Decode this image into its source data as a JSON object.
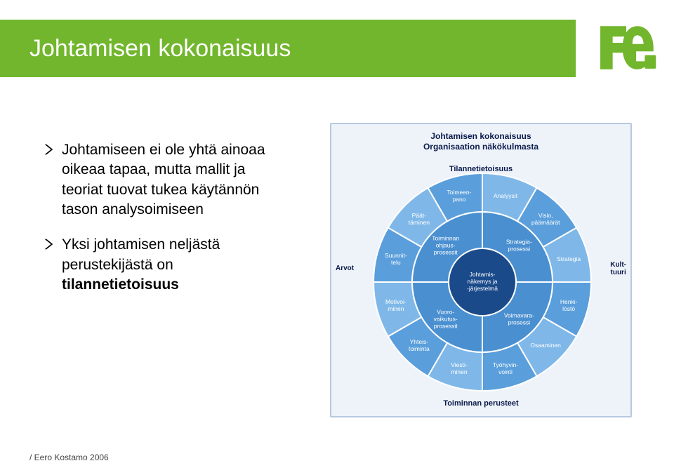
{
  "header": {
    "title": "Johtamisen kokonaisuus"
  },
  "bullets": [
    {
      "text": "Johtamiseen ei ole yhtä ainoaa oikeaa tapaa, mutta mallit ja teoriat tuovat tukea käytännön tason analysoimiseen"
    },
    {
      "text_prefix": "Yksi johtamisen neljästä perustekijästä on ",
      "text_bold": "tilannetietoisuus"
    }
  ],
  "diagram": {
    "title_line1": "Johtamisen kokonaisuus",
    "title_line2": "Organisaation näkökulmasta",
    "top_label": "Tilannetietoisuus",
    "bottom_label": "Toiminnan perusteet",
    "left_label": "Arvot",
    "right_label": "Kult-\ntuuri",
    "center_line1": "Johtamis-",
    "center_line2": "näkemys ja",
    "center_line3": "-järjestelmä",
    "outer_segments": [
      "Analyysit",
      "Visio,\npäämäärät",
      "Strategia",
      "Henki-\nlöstö",
      "Osaaminen",
      "Työhyvin-\nvointi",
      "Viesti-\nminen",
      "Yhteis-\ntoiminta",
      "Motivoi-\nminen",
      "Suunnit-\ntelu",
      "Päät-\ntäminen",
      "Toimeen-\npano"
    ],
    "inner_segments": [
      "Strategia-\nprosessi",
      "Voimavara-\nprosessi",
      "Vuoro-\nvaikutus-\nprosessit",
      "Toiminnan\nohjaus-\nprosessit"
    ],
    "colors": {
      "background": "#eef3fa",
      "border": "#b8c8e0",
      "text_dark": "#0a1a4a",
      "segment_outer_light": "#7fb8e8",
      "segment_outer_mid": "#5a9edb",
      "segment_outer_dark": "#3a7fc4",
      "segment_inner": "#4a8fd0",
      "center": "#1a4a8a",
      "segment_border": "#ffffff"
    }
  },
  "footer": {
    "text": "/ Eero Kostamo 2006"
  },
  "theme": {
    "green": "#71b62c",
    "logo": "#71b62c"
  }
}
